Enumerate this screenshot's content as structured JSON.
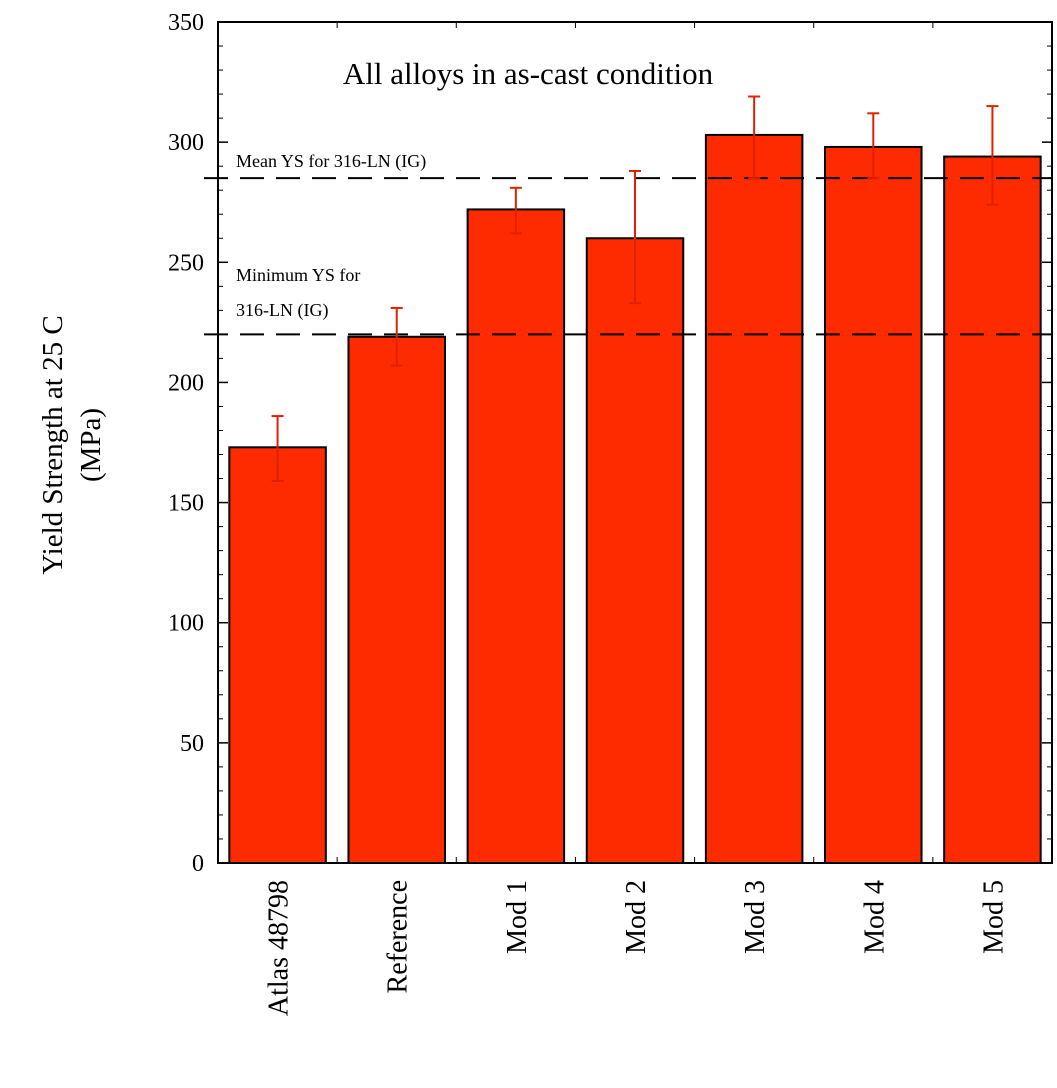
{
  "chart_data": {
    "type": "bar",
    "title": "All alloys in as-cast condition",
    "ylabel_line1": "Yield Strength at 25 C",
    "ylabel_line2": "(MPa)",
    "xlabel": "",
    "ylim": [
      0,
      350
    ],
    "yticks": [
      0,
      50,
      100,
      150,
      200,
      250,
      300,
      350
    ],
    "categories": [
      "Atlas 48798",
      "Reference",
      "Mod 1",
      "Mod 2",
      "Mod 3",
      "Mod 4",
      "Mod 5"
    ],
    "values": [
      173,
      219,
      272,
      260,
      303,
      298,
      294
    ],
    "error_low": [
      159,
      207,
      262,
      233,
      285,
      285,
      274
    ],
    "error_high": [
      186,
      231,
      281,
      288,
      319,
      312,
      315
    ],
    "reference_lines": [
      {
        "label": "Mean YS for 316-LN (IG)",
        "value": 285
      },
      {
        "label_line1": "Minimum YS for",
        "label_line2": "316-LN (IG)",
        "value": 220
      }
    ],
    "colors": {
      "bar": "#ff2b00",
      "error_bar": "#e02000",
      "reference_line": "#000000"
    },
    "grid": false,
    "legend": "none"
  }
}
